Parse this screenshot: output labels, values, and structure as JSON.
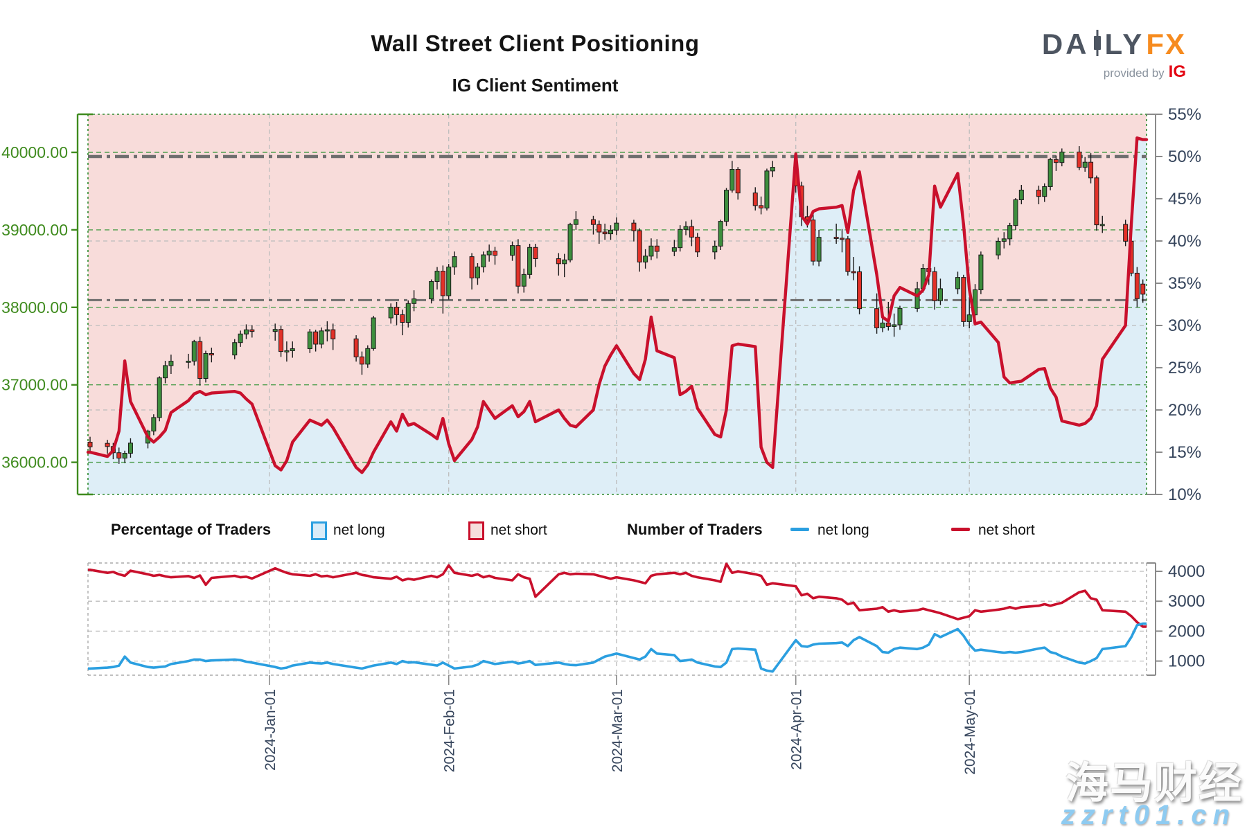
{
  "header": {
    "title": "Wall Street Client Positioning",
    "subtitle": "IG Client Sentiment"
  },
  "logo": {
    "brand_left": "DA",
    "brand_right": "LY",
    "brand_accent": "FX",
    "tagline": "provided by",
    "provider": "IG"
  },
  "legend": {
    "pct": {
      "title": "Percentage of Traders",
      "long_label": "net long",
      "short_label": "net short"
    },
    "num": {
      "title": "Number of Traders",
      "long_label": "net long",
      "short_label": "net short"
    }
  },
  "watermark": {
    "line1": "海马财经",
    "line2": "zzrt01.cn"
  },
  "chart_data": {
    "type": "candlestick+line",
    "description": "Top panel: daily Wall Street price candles (left axis) with percent-net-long sentiment line (right axis); pink shading = net short share, blue shading = net long share. Bottom panel: number of traders net long (blue) and net short (red).",
    "day_index_base": "2023-12-01",
    "row_format": [
      "day_index",
      "open",
      "high",
      "low",
      "close",
      "pct_net_long",
      "num_net_long",
      "num_net_short"
    ],
    "price_axis": {
      "ticks": [
        {
          "label": "40000.00",
          "value": 40000
        },
        {
          "label": "39000.00",
          "value": 39000
        },
        {
          "label": "38000.00",
          "value": 38000
        },
        {
          "label": "37000.00",
          "value": 37000
        },
        {
          "label": "36000.00",
          "value": 36000
        }
      ]
    },
    "pct_axis": {
      "ticks": [
        {
          "label": "55%",
          "value": 55
        },
        {
          "label": "50%",
          "value": 50
        },
        {
          "label": "45%",
          "value": 45
        },
        {
          "label": "40%",
          "value": 40
        },
        {
          "label": "35%",
          "value": 35
        },
        {
          "label": "30%",
          "value": 30
        },
        {
          "label": "25%",
          "value": 25
        },
        {
          "label": "20%",
          "value": 20
        },
        {
          "label": "15%",
          "value": 15
        },
        {
          "label": "10%",
          "value": 10
        }
      ],
      "gray_gridlines": [
        40,
        30,
        20
      ]
    },
    "count_axis": {
      "ticks": [
        {
          "label": "4000",
          "value": 4000
        },
        {
          "label": "3000",
          "value": 3000
        },
        {
          "label": "2000",
          "value": 2000
        },
        {
          "label": "1000",
          "value": 1000
        }
      ]
    },
    "date_ticks": [
      {
        "label": "2024-Jan-01",
        "day": 31
      },
      {
        "label": "2024-Feb-01",
        "day": 62
      },
      {
        "label": "2024-Mar-01",
        "day": 91
      },
      {
        "label": "2024-Apr-01",
        "day": 122
      },
      {
        "label": "2024-May-01",
        "day": 152
      }
    ],
    "reference_lines_pct": [
      50,
      33
    ],
    "colors": {
      "net_short_fill": "#f8dcda",
      "net_long_fill": "#deeef7",
      "pct_line": "#c9102c",
      "candle_up": "#3d8e3d",
      "candle_down": "#e23128",
      "candle_stroke": "#1a1a1a",
      "price_axis_color": "#3f8b1e",
      "right_axis_text": "#36455c",
      "axis_line_gray": "#8a8a8a",
      "green_grid": "#4d9e4d",
      "gray_grid": "#bcbcbc",
      "ref_line": "#6e6e6e",
      "num_long_line": "#2b9fe0",
      "num_short_line": "#c9102c",
      "main_border": "#2e8b2e",
      "sub_border": "#aaaaaa"
    },
    "rows": [
      [
        0,
        36260,
        36330,
        36140,
        36200,
        15.0,
        750,
        4050
      ],
      [
        3,
        36245,
        36290,
        36110,
        36204,
        14.5,
        780,
        3950
      ],
      [
        4,
        36204,
        36250,
        36040,
        36124,
        15.2,
        800,
        3980
      ],
      [
        5,
        36124,
        36190,
        35980,
        36054,
        17.5,
        850,
        3900
      ],
      [
        6,
        36054,
        36150,
        35990,
        36117,
        25.8,
        1150,
        3850
      ],
      [
        7,
        36117,
        36310,
        36060,
        36248,
        21.0,
        950,
        4020
      ],
      [
        10,
        36248,
        36420,
        36180,
        36404,
        16.8,
        800,
        3900
      ],
      [
        11,
        36404,
        36620,
        36350,
        36578,
        16.2,
        780,
        3850
      ],
      [
        12,
        36578,
        37110,
        36530,
        37090,
        16.8,
        800,
        3880
      ],
      [
        13,
        37090,
        37310,
        37020,
        37248,
        17.6,
        820,
        3830
      ],
      [
        14,
        37248,
        37390,
        37140,
        37305,
        19.7,
        900,
        3800
      ],
      [
        17,
        37305,
        37400,
        37210,
        37306,
        21.1,
        1000,
        3840
      ],
      [
        18,
        37306,
        37580,
        37250,
        37558,
        21.9,
        1050,
        3780
      ],
      [
        19,
        37558,
        37620,
        36990,
        37082,
        22.2,
        1050,
        3860
      ],
      [
        20,
        37082,
        37440,
        37030,
        37404,
        21.8,
        1000,
        3550
      ],
      [
        21,
        37404,
        37480,
        37290,
        37385,
        22.0,
        1020,
        3780
      ],
      [
        25,
        37385,
        37590,
        37330,
        37545,
        22.2,
        1050,
        3850
      ],
      [
        26,
        37545,
        37700,
        37490,
        37656,
        22.0,
        1030,
        3800
      ],
      [
        27,
        37656,
        37780,
        37590,
        37710,
        21.3,
        980,
        3820
      ],
      [
        28,
        37710,
        37770,
        37610,
        37689,
        20.7,
        950,
        3760
      ],
      [
        32,
        37689,
        37790,
        37570,
        37715,
        13.4,
        800,
        4100
      ],
      [
        33,
        37715,
        37760,
        37360,
        37430,
        12.9,
        750,
        4020
      ],
      [
        34,
        37430,
        37560,
        37300,
        37440,
        14.0,
        780,
        3950
      ],
      [
        35,
        37440,
        37560,
        37350,
        37466,
        16.2,
        850,
        3900
      ],
      [
        38,
        37466,
        37720,
        37410,
        37683,
        18.8,
        950,
        3850
      ],
      [
        39,
        37683,
        37710,
        37430,
        37525,
        18.5,
        930,
        3900
      ],
      [
        40,
        37525,
        37740,
        37470,
        37696,
        18.2,
        920,
        3830
      ],
      [
        41,
        37696,
        37820,
        37560,
        37711,
        18.8,
        950,
        3850
      ],
      [
        42,
        37711,
        37790,
        37450,
        37593,
        17.9,
        900,
        3800
      ],
      [
        46,
        37593,
        37640,
        37300,
        37361,
        13.2,
        780,
        3950
      ],
      [
        47,
        37361,
        37430,
        37130,
        37267,
        12.6,
        750,
        3880
      ],
      [
        48,
        37267,
        37510,
        37220,
        37468,
        13.5,
        800,
        3850
      ],
      [
        49,
        37468,
        37890,
        37440,
        37864,
        15.0,
        850,
        3800
      ],
      [
        52,
        37864,
        38050,
        37790,
        38002,
        18.6,
        950,
        3750
      ],
      [
        53,
        38002,
        38070,
        37770,
        37905,
        17.5,
        900,
        3820
      ],
      [
        54,
        37905,
        37970,
        37640,
        37806,
        19.5,
        1000,
        3700
      ],
      [
        55,
        37806,
        38090,
        37740,
        38049,
        18.2,
        950,
        3750
      ],
      [
        56,
        38049,
        38220,
        37950,
        38109,
        18.4,
        960,
        3720
      ],
      [
        59,
        38109,
        38360,
        38050,
        38333,
        17.1,
        880,
        3850
      ],
      [
        60,
        38333,
        38520,
        38230,
        38467,
        16.6,
        850,
        3800
      ],
      [
        61,
        38467,
        38540,
        37920,
        38150,
        19.0,
        950,
        3900
      ],
      [
        62,
        38150,
        38560,
        38100,
        38520,
        16.0,
        850,
        4200
      ],
      [
        63,
        38520,
        38720,
        38420,
        38654,
        14.0,
        750,
        3950
      ],
      [
        66,
        38654,
        38700,
        38230,
        38380,
        16.5,
        820,
        3850
      ],
      [
        67,
        38380,
        38570,
        38290,
        38521,
        18.0,
        880,
        3900
      ],
      [
        68,
        38521,
        38720,
        38450,
        38677,
        21.0,
        1000,
        3800
      ],
      [
        69,
        38677,
        38810,
        38590,
        38726,
        20.0,
        950,
        3850
      ],
      [
        70,
        38726,
        38780,
        38550,
        38672,
        19.0,
        900,
        3780
      ],
      [
        73,
        38672,
        38850,
        38600,
        38797,
        20.5,
        980,
        3700
      ],
      [
        74,
        38797,
        38880,
        38180,
        38273,
        19.2,
        920,
        3900
      ],
      [
        75,
        38273,
        38500,
        38190,
        38424,
        19.8,
        950,
        3800
      ],
      [
        76,
        38424,
        38820,
        38370,
        38773,
        21.0,
        1000,
        3750
      ],
      [
        77,
        38773,
        38820,
        38520,
        38628,
        18.6,
        870,
        3150
      ],
      [
        81,
        38628,
        38700,
        38410,
        38563,
        20.0,
        950,
        3900
      ],
      [
        82,
        38563,
        38690,
        38390,
        38612,
        19.0,
        900,
        3950
      ],
      [
        83,
        38612,
        39090,
        38580,
        39069,
        18.2,
        870,
        3900
      ],
      [
        84,
        39069,
        39240,
        39000,
        39132,
        18.0,
        860,
        3920
      ],
      [
        87,
        39132,
        39180,
        38940,
        39069,
        20.0,
        950,
        3900
      ],
      [
        88,
        39069,
        39120,
        38820,
        38972,
        23.0,
        1050,
        3850
      ],
      [
        89,
        38972,
        39080,
        38870,
        38949,
        25.2,
        1150,
        3800
      ],
      [
        90,
        38949,
        39060,
        38870,
        38996,
        26.5,
        1200,
        3750
      ],
      [
        91,
        38996,
        39160,
        38930,
        39087,
        27.6,
        1250,
        3800
      ],
      [
        94,
        39087,
        39130,
        38850,
        38989,
        24.3,
        1100,
        3700
      ],
      [
        95,
        38989,
        39020,
        38460,
        38585,
        23.6,
        1050,
        3650
      ],
      [
        96,
        38585,
        38750,
        38500,
        38661,
        26.0,
        1150,
        3600
      ],
      [
        97,
        38661,
        38890,
        38610,
        38791,
        31.0,
        1400,
        3850
      ],
      [
        98,
        38791,
        38880,
        38630,
        38722,
        27.0,
        1250,
        3900
      ],
      [
        101,
        38722,
        38870,
        38660,
        38770,
        26.2,
        1200,
        3950
      ],
      [
        102,
        38770,
        39060,
        38720,
        39005,
        21.8,
        1000,
        3900
      ],
      [
        103,
        39005,
        39110,
        38930,
        39043,
        22.2,
        1020,
        3950
      ],
      [
        104,
        39043,
        39130,
        38790,
        38906,
        22.8,
        1050,
        3850
      ],
      [
        105,
        38906,
        38960,
        38650,
        38715,
        20.2,
        950,
        3800
      ],
      [
        108,
        38715,
        38860,
        38620,
        38790,
        17.1,
        820,
        3700
      ],
      [
        109,
        38790,
        39130,
        38740,
        39110,
        16.8,
        800,
        3650
      ],
      [
        110,
        39110,
        39540,
        39050,
        39512,
        20.0,
        950,
        4250
      ],
      [
        111,
        39512,
        39890,
        39480,
        39781,
        27.6,
        1400,
        3950
      ],
      [
        112,
        39781,
        39810,
        39390,
        39476,
        27.8,
        1420,
        4000
      ],
      [
        115,
        39476,
        39550,
        39250,
        39313,
        27.5,
        1380,
        3900
      ],
      [
        116,
        39313,
        39430,
        39200,
        39282,
        15.6,
        750,
        3850
      ],
      [
        117,
        39282,
        39790,
        39250,
        39760,
        13.8,
        680,
        3550
      ],
      [
        118,
        39760,
        39890,
        39680,
        39807,
        13.2,
        650,
        3600
      ],
      [
        122,
        39807,
        39860,
        39480,
        39567,
        50.3,
        1700,
        3500
      ],
      [
        123,
        39567,
        39620,
        39050,
        39170,
        43.0,
        1500,
        3200
      ],
      [
        124,
        39170,
        39310,
        39030,
        39127,
        42.0,
        1480,
        3250
      ],
      [
        125,
        39127,
        39200,
        38540,
        38596,
        43.5,
        1550,
        3100
      ],
      [
        126,
        38596,
        39000,
        38530,
        38904,
        43.8,
        1580,
        3150
      ],
      [
        129,
        38904,
        39080,
        38820,
        38892,
        44.0,
        1600,
        3100
      ],
      [
        130,
        38892,
        39010,
        38710,
        38884,
        44.2,
        1620,
        3050
      ],
      [
        131,
        38884,
        38920,
        38410,
        38462,
        41.0,
        1500,
        2900
      ],
      [
        132,
        38462,
        38650,
        38350,
        38459,
        46.0,
        1700,
        2950
      ],
      [
        133,
        38459,
        38530,
        37910,
        37983,
        48.2,
        1800,
        2700
      ],
      [
        136,
        37983,
        38180,
        37660,
        37735,
        36.0,
        1500,
        2750
      ],
      [
        137,
        37735,
        38010,
        37680,
        37798,
        31.0,
        1300,
        2800
      ],
      [
        138,
        37798,
        38070,
        37700,
        37753,
        30.5,
        1280,
        2650
      ],
      [
        139,
        37753,
        37920,
        37620,
        37775,
        33.5,
        1400,
        2700
      ],
      [
        140,
        37775,
        38020,
        37710,
        37986,
        34.5,
        1450,
        2650
      ],
      [
        143,
        37986,
        38330,
        37940,
        38240,
        33.5,
        1400,
        2700
      ],
      [
        144,
        38240,
        38560,
        38190,
        38503,
        34.2,
        1450,
        2750
      ],
      [
        145,
        38503,
        38590,
        38290,
        38460,
        36.0,
        1550,
        2700
      ],
      [
        146,
        38460,
        38520,
        37970,
        38086,
        46.5,
        1900,
        2650
      ],
      [
        147,
        38086,
        38370,
        38030,
        38240,
        44.0,
        1800,
        2600
      ],
      [
        150,
        38240,
        38460,
        38170,
        38386,
        48.0,
        2070,
        2400
      ],
      [
        151,
        38386,
        38420,
        37750,
        37816,
        42.0,
        1850,
        2450
      ],
      [
        152,
        37816,
        38130,
        37730,
        37903,
        34.3,
        1550,
        2500
      ],
      [
        153,
        37903,
        38300,
        37850,
        38226,
        30.2,
        1350,
        2700
      ],
      [
        154,
        38226,
        38720,
        38170,
        38676,
        30.4,
        1380,
        2650
      ],
      [
        157,
        38676,
        38900,
        38620,
        38852,
        28.0,
        1300,
        2720
      ],
      [
        158,
        38852,
        38970,
        38760,
        38884,
        23.9,
        1280,
        2750
      ],
      [
        159,
        38884,
        39090,
        38800,
        39056,
        23.2,
        1300,
        2800
      ],
      [
        160,
        39056,
        39410,
        39000,
        39388,
        23.3,
        1280,
        2750
      ],
      [
        161,
        39388,
        39580,
        39330,
        39513,
        23.4,
        1300,
        2800
      ],
      [
        164,
        39513,
        39570,
        39330,
        39431,
        24.8,
        1420,
        2850
      ],
      [
        165,
        39431,
        39600,
        39360,
        39558,
        24.9,
        1450,
        2900
      ],
      [
        166,
        39558,
        39930,
        39510,
        39908,
        22.6,
        1300,
        2850
      ],
      [
        167,
        39908,
        39960,
        39760,
        39869,
        21.5,
        1250,
        2900
      ],
      [
        168,
        39869,
        40050,
        39820,
        40004,
        18.7,
        1150,
        2950
      ],
      [
        171,
        40004,
        40080,
        39770,
        39807,
        18.2,
        950,
        3300
      ],
      [
        172,
        39807,
        39940,
        39750,
        39873,
        18.4,
        920,
        3350
      ],
      [
        173,
        39873,
        39990,
        39600,
        39671,
        19.0,
        1000,
        3100
      ],
      [
        174,
        39671,
        39700,
        38990,
        39065,
        20.5,
        1100,
        3050
      ],
      [
        175,
        39065,
        39180,
        38960,
        39070,
        26.0,
        1400,
        2700
      ],
      [
        179,
        39070,
        39130,
        38790,
        38853,
        30.0,
        1500,
        2650
      ],
      [
        180,
        38853,
        38900,
        38400,
        38441,
        42.0,
        1800,
        2500
      ],
      [
        181,
        38441,
        38520,
        38000,
        38111,
        52.2,
        2200,
        2300
      ],
      [
        182,
        38300,
        38360,
        38060,
        38170,
        52.0,
        2250,
        2150
      ]
    ]
  }
}
